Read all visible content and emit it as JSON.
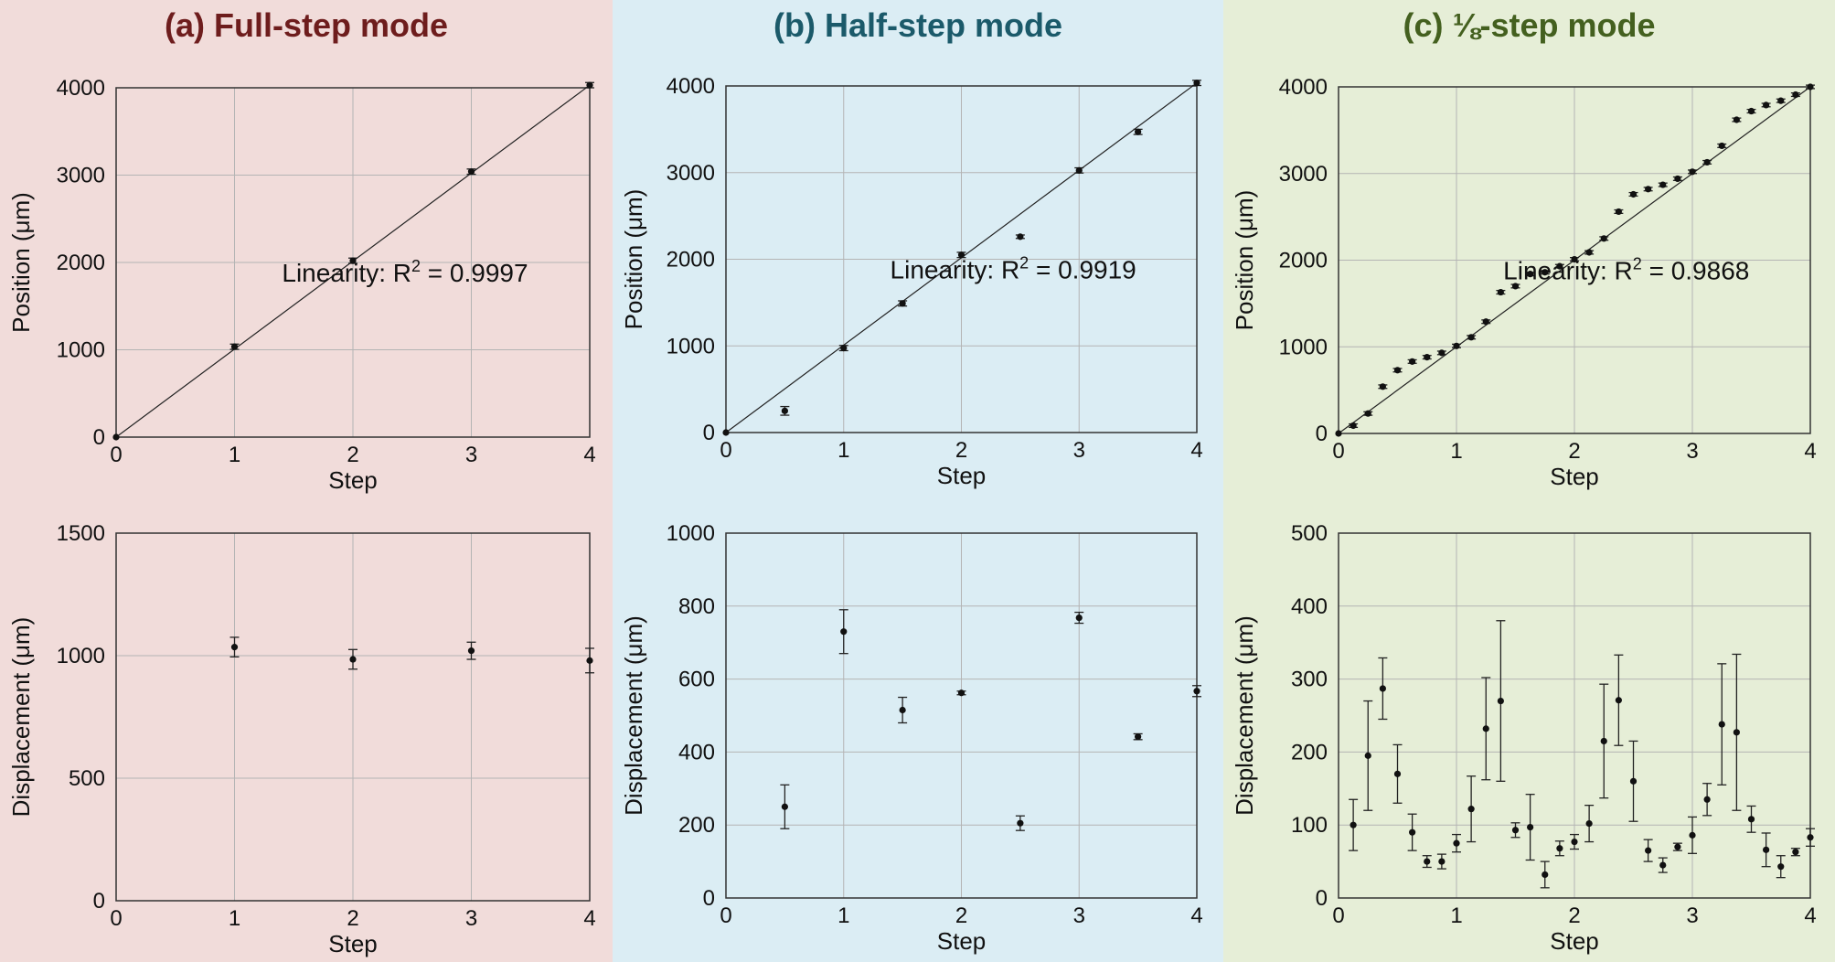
{
  "panels": [
    {
      "title": "(a) Full-step mode",
      "bg": "#f1dcda",
      "title_color": "#6e1d1d",
      "top": {
        "type": "scatter",
        "xlabel": "Step",
        "ylabel": "Position (μm)",
        "xlim": [
          0,
          4
        ],
        "ylim": [
          0,
          4000
        ],
        "xticks": [
          0,
          1,
          2,
          3,
          4
        ],
        "yticks": [
          0,
          1000,
          2000,
          3000,
          4000
        ],
        "x": [
          0,
          1,
          2,
          3,
          4
        ],
        "y": [
          0,
          1035,
          2020,
          3040,
          4030
        ],
        "err": [
          0,
          30,
          30,
          30,
          30
        ],
        "fit": [
          [
            0,
            0
          ],
          [
            4,
            4030
          ]
        ],
        "annotation": {
          "text": "Linearity: R",
          "sup": "2",
          "rest": " = 0.9997"
        }
      },
      "bottom": {
        "type": "scatter",
        "xlabel": "Step",
        "ylabel": "Displacement (μm)",
        "xlim": [
          0,
          4
        ],
        "ylim": [
          0,
          1500
        ],
        "xticks": [
          0,
          1,
          2,
          3,
          4
        ],
        "yticks": [
          0,
          500,
          1000,
          1500
        ],
        "x": [
          1,
          2,
          3,
          4
        ],
        "y": [
          1035,
          985,
          1020,
          980
        ],
        "err": [
          40,
          40,
          35,
          50
        ]
      }
    },
    {
      "title": "(b) Half-step mode",
      "bg": "#dbedf4",
      "title_color": "#1b5a6a",
      "top": {
        "type": "scatter",
        "xlabel": "Step",
        "ylabel": "Position (μm)",
        "xlim": [
          0,
          4
        ],
        "ylim": [
          0,
          4000
        ],
        "xticks": [
          0,
          1,
          2,
          3,
          4
        ],
        "yticks": [
          0,
          1000,
          2000,
          3000,
          4000
        ],
        "x": [
          0,
          0.5,
          1,
          1.5,
          2,
          2.5,
          3,
          3.5,
          4
        ],
        "y": [
          0,
          250,
          975,
          1490,
          2050,
          2260,
          3025,
          3470,
          4035
        ],
        "err": [
          0,
          50,
          30,
          30,
          30,
          20,
          30,
          30,
          30
        ],
        "fit": [
          [
            0,
            0
          ],
          [
            4,
            4035
          ]
        ],
        "annotation": {
          "text": "Linearity: R",
          "sup": "2",
          "rest": " = 0.9919"
        }
      },
      "bottom": {
        "type": "scatter",
        "xlabel": "Step",
        "ylabel": "Displacement (μm)",
        "xlim": [
          0,
          4
        ],
        "ylim": [
          0,
          1000
        ],
        "xticks": [
          0,
          1,
          2,
          3,
          4
        ],
        "yticks": [
          0,
          200,
          400,
          600,
          800,
          1000
        ],
        "x": [
          0.5,
          1,
          1.5,
          2,
          2.5,
          3,
          3.5,
          4
        ],
        "y": [
          250,
          730,
          515,
          562,
          205,
          768,
          442,
          567
        ],
        "err": [
          60,
          60,
          35,
          5,
          20,
          15,
          8,
          15
        ]
      }
    },
    {
      "title": "(c) ⅛-step mode",
      "bg": "#e6eed7",
      "title_color": "#44601f",
      "top": {
        "type": "scatter",
        "xlabel": "Step",
        "ylabel": "Position (μm)",
        "xlim": [
          0,
          4
        ],
        "ylim": [
          0,
          4000
        ],
        "xticks": [
          0,
          1,
          2,
          3,
          4
        ],
        "yticks": [
          0,
          1000,
          2000,
          3000,
          4000
        ],
        "x": [
          0,
          0.125,
          0.25,
          0.375,
          0.5,
          0.625,
          0.75,
          0.875,
          1,
          1.125,
          1.25,
          1.375,
          1.5,
          1.625,
          1.75,
          1.875,
          2,
          2.125,
          2.25,
          2.375,
          2.5,
          2.625,
          2.75,
          2.875,
          3,
          3.125,
          3.25,
          3.375,
          3.5,
          3.625,
          3.75,
          3.875,
          4
        ],
        "y": [
          0,
          90,
          230,
          540,
          730,
          830,
          880,
          930,
          1010,
          1110,
          1290,
          1630,
          1700,
          1840,
          1860,
          1930,
          2010,
          2090,
          2250,
          2560,
          2760,
          2820,
          2870,
          2940,
          3020,
          3130,
          3320,
          3620,
          3720,
          3790,
          3840,
          3910,
          4000
        ],
        "err": [
          0,
          20,
          20,
          20,
          20,
          20,
          20,
          20,
          20,
          20,
          20,
          20,
          20,
          20,
          20,
          20,
          20,
          20,
          20,
          20,
          20,
          20,
          20,
          20,
          20,
          20,
          20,
          20,
          20,
          20,
          20,
          20,
          20
        ],
        "fit": [
          [
            0,
            0
          ],
          [
            4,
            4000
          ]
        ],
        "annotation": {
          "text": "Linearity: R",
          "sup": "2",
          "rest": " = 0.9868"
        }
      },
      "bottom": {
        "type": "scatter",
        "xlabel": "Step",
        "ylabel": "Displacement (μm)",
        "xlim": [
          0,
          4
        ],
        "ylim": [
          0,
          500
        ],
        "xticks": [
          0,
          1,
          2,
          3,
          4
        ],
        "yticks": [
          0,
          100,
          200,
          300,
          400,
          500
        ],
        "x": [
          0.125,
          0.25,
          0.375,
          0.5,
          0.625,
          0.75,
          0.875,
          1,
          1.125,
          1.25,
          1.375,
          1.5,
          1.625,
          1.75,
          1.875,
          2,
          2.125,
          2.25,
          2.375,
          2.5,
          2.625,
          2.75,
          2.875,
          3,
          3.125,
          3.25,
          3.375,
          3.5,
          3.625,
          3.75,
          3.875,
          4
        ],
        "y": [
          100,
          195,
          287,
          170,
          90,
          50,
          50,
          75,
          122,
          232,
          270,
          93,
          97,
          32,
          68,
          77,
          102,
          215,
          271,
          160,
          65,
          45,
          70,
          86,
          135,
          238,
          227,
          108,
          66,
          43,
          63,
          83
        ],
        "err": [
          35,
          75,
          42,
          40,
          25,
          8,
          10,
          12,
          45,
          70,
          110,
          10,
          45,
          18,
          10,
          10,
          25,
          78,
          62,
          55,
          15,
          10,
          5,
          25,
          22,
          83,
          107,
          18,
          23,
          15,
          5,
          12
        ]
      }
    }
  ]
}
